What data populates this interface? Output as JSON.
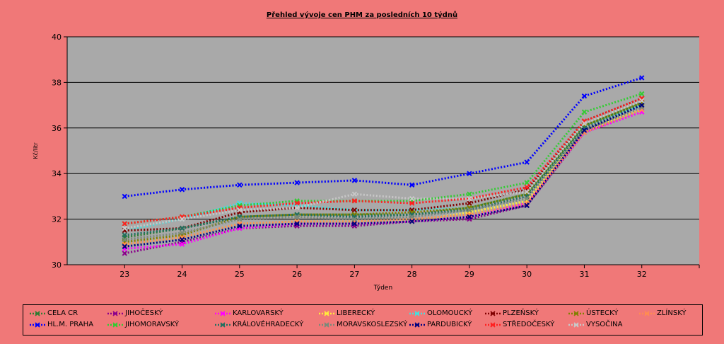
{
  "chart_data": {
    "type": "line",
    "title": "Přehled vývoje cen PHM za posledních 10 týdnů",
    "xlabel": "Týden",
    "ylabel": "Kč/litr",
    "ylim": [
      30,
      40
    ],
    "ytick_step": 2,
    "categories": [
      "23",
      "24",
      "25",
      "26",
      "27",
      "28",
      "29",
      "30",
      "31",
      "32"
    ],
    "grid": true,
    "legend_position": "bottom",
    "series": [
      {
        "name": "CELA CR",
        "color": "#2E7D32",
        "values": [
          31.2,
          31.6,
          32.1,
          32.2,
          32.2,
          32.2,
          32.5,
          33.1,
          36.1,
          37.1
        ]
      },
      {
        "name": "JIHOČESKÝ",
        "color": "#8B008B",
        "values": [
          30.5,
          31.0,
          31.6,
          31.7,
          31.7,
          31.9,
          32.0,
          32.6,
          35.8,
          36.8
        ]
      },
      {
        "name": "KARLOVARSKÝ",
        "color": "#FF00FF",
        "values": [
          30.7,
          30.9,
          31.6,
          31.8,
          31.8,
          31.9,
          32.1,
          32.7,
          35.8,
          36.7
        ]
      },
      {
        "name": "LIBERECKÝ",
        "color": "#FFEB3B",
        "values": [
          30.9,
          31.2,
          31.8,
          31.9,
          31.9,
          31.9,
          32.3,
          32.8,
          35.9,
          36.8
        ]
      },
      {
        "name": "OLOMOUCKÝ",
        "color": "#40E0E0",
        "values": [
          31.5,
          32.0,
          32.7,
          32.6,
          32.4,
          32.4,
          32.5,
          33.1,
          36.1,
          37.0
        ]
      },
      {
        "name": "PLZEŇSKÝ",
        "color": "#800000",
        "values": [
          31.5,
          31.6,
          32.3,
          32.5,
          32.4,
          32.4,
          32.7,
          33.3,
          36.3,
          37.3
        ]
      },
      {
        "name": "ÚSTECKÝ",
        "color": "#808000",
        "values": [
          31.0,
          31.3,
          32.1,
          32.2,
          32.2,
          32.3,
          32.5,
          33.1,
          36.1,
          37.1
        ]
      },
      {
        "name": "ZLÍNSKÝ",
        "color": "#FF8C50",
        "values": [
          30.9,
          31.2,
          31.8,
          31.9,
          31.9,
          32.0,
          32.2,
          32.7,
          35.8,
          36.8
        ]
      },
      {
        "name": "HL.M. PRAHA",
        "color": "#0000FF",
        "values": [
          33.0,
          33.3,
          33.5,
          33.6,
          33.7,
          33.5,
          34.0,
          34.5,
          37.4,
          38.2
        ]
      },
      {
        "name": "JIHOMORAVSKÝ",
        "color": "#33CC33",
        "values": [
          31.8,
          32.1,
          32.6,
          32.8,
          32.8,
          32.8,
          33.1,
          33.6,
          36.7,
          37.5
        ]
      },
      {
        "name": "KRÁLOVÉHRADECKÝ",
        "color": "#207060",
        "values": [
          31.3,
          31.6,
          32.1,
          32.2,
          32.1,
          32.2,
          32.4,
          33.0,
          36.0,
          37.0
        ]
      },
      {
        "name": "MORAVSKOSLEZSKÝ",
        "color": "#7A8A7A",
        "values": [
          31.1,
          31.4,
          32.0,
          32.1,
          32.0,
          32.1,
          32.4,
          32.9,
          35.9,
          36.9
        ]
      },
      {
        "name": "PARDUBICKÝ",
        "color": "#000080",
        "values": [
          30.8,
          31.1,
          31.7,
          31.8,
          31.8,
          31.9,
          32.1,
          32.6,
          35.9,
          37.0
        ]
      },
      {
        "name": "STŘEDOČESKÝ",
        "color": "#FF2020",
        "values": [
          31.8,
          32.1,
          32.5,
          32.7,
          32.8,
          32.7,
          32.9,
          33.4,
          36.3,
          37.3
        ]
      },
      {
        "name": "VYSOČINA",
        "color": "#C8C8C8",
        "values": [
          31.6,
          32.0,
          32.4,
          32.5,
          33.1,
          32.9,
          32.9,
          33.2,
          36.2,
          37.2
        ]
      }
    ]
  }
}
